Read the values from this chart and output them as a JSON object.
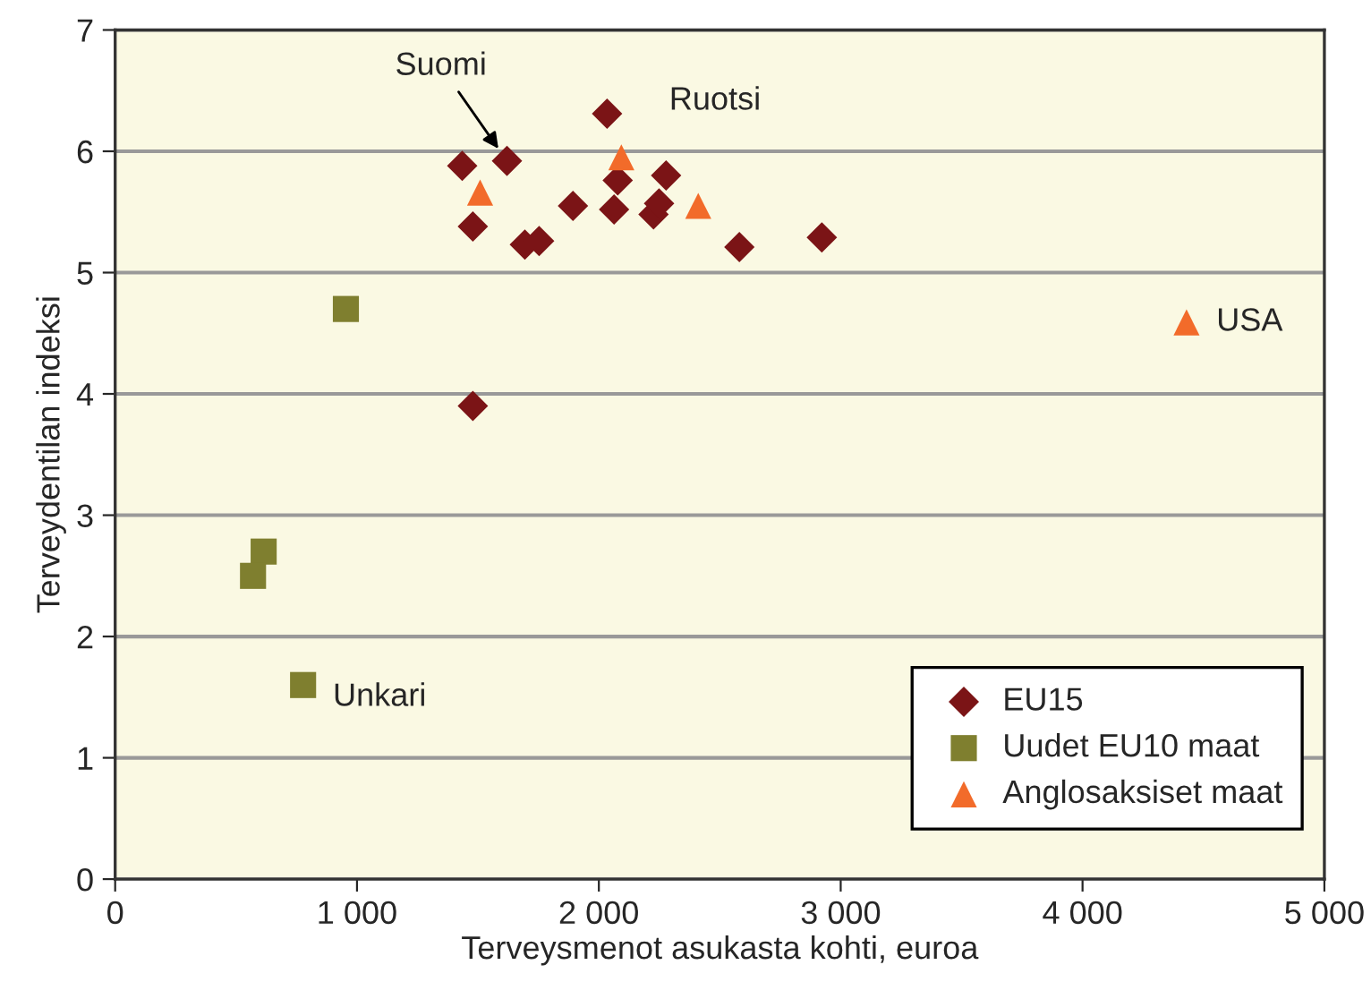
{
  "chart_data": {
    "type": "scatter",
    "xlabel": "Terveysmenot asukasta kohti, euroa",
    "ylabel": "Terveydentilan indeksi",
    "xlim": [
      0,
      5000
    ],
    "xticks": [
      0,
      {
        "value": 1000,
        "label": "1 000"
      },
      {
        "value": 2000,
        "label": "2 000"
      },
      {
        "value": 3000,
        "label": "3 000"
      },
      {
        "value": 4000,
        "label": "4 000"
      },
      {
        "value": 5000,
        "label": "5 000"
      }
    ],
    "ylim": [
      0,
      7
    ],
    "yticks": [
      0,
      1,
      2,
      3,
      4,
      5,
      6,
      7
    ],
    "grid": "y",
    "legend": "bottom right",
    "series": [
      {
        "name": "EU15",
        "color": "#7b1416",
        "marker": "diamond",
        "x": [
          1435,
          1620,
          2034,
          1479,
          1694,
          1753,
          1893,
          2078,
          2063,
          2226,
          2249,
          2278,
          2581,
          2922,
          1479
        ],
        "values": [
          5.88,
          5.92,
          6.31,
          5.38,
          5.23,
          5.26,
          5.55,
          5.76,
          5.52,
          5.48,
          5.57,
          5.8,
          5.21,
          5.29,
          3.9
        ]
      },
      {
        "name": "Uudet EU10 maat",
        "color": "#7f7f2f",
        "marker": "square",
        "x": [
          954,
          614,
          570,
          777
        ],
        "values": [
          4.7,
          2.7,
          2.5,
          1.6
        ]
      },
      {
        "name": "Anglosaksiset maat",
        "color": "#f26b2a",
        "marker": "triangle",
        "x": [
          1509,
          2093,
          2411,
          4430
        ],
        "values": [
          5.66,
          5.95,
          5.55,
          4.59
        ]
      }
    ],
    "annotations": [
      {
        "text": "Suomi",
        "x": 1620,
        "y": 5.92
      },
      {
        "text": "Ruotsi",
        "x": 2034,
        "y": 6.31
      },
      {
        "text": "USA",
        "x": 4430,
        "y": 4.59
      },
      {
        "text": "Unkari",
        "x": 777,
        "y": 1.6
      }
    ]
  }
}
